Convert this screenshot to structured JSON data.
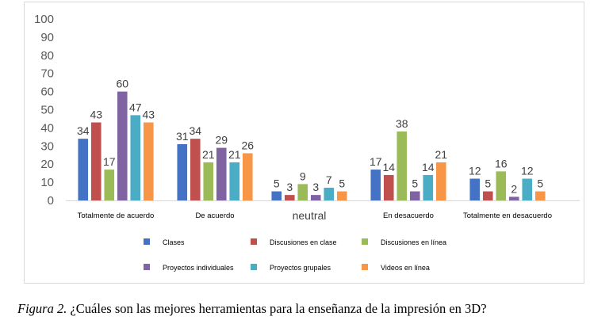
{
  "chart_data": {
    "type": "bar",
    "categories": [
      "Totalmente de acuerdo",
      "De acuerdo",
      "neutral",
      "En desacuerdo",
      "Totalmente en desacuerdo"
    ],
    "series": [
      {
        "name": "Clases",
        "values": [
          34,
          31,
          5,
          17,
          12
        ],
        "color": "#4472c4"
      },
      {
        "name": "Discusiones en clase",
        "values": [
          43,
          34,
          3,
          14,
          5
        ],
        "color": "#c0504d"
      },
      {
        "name": "Discusiones en línea",
        "values": [
          17,
          21,
          9,
          38,
          16
        ],
        "color": "#9bbb59"
      },
      {
        "name": "Proyectos individuales",
        "values": [
          60,
          29,
          3,
          5,
          2
        ],
        "color": "#8064a2"
      },
      {
        "name": "Proyectos grupales",
        "values": [
          47,
          21,
          7,
          14,
          12
        ],
        "color": "#4bacc6"
      },
      {
        "name": "Videos en línea",
        "values": [
          43,
          26,
          5,
          21,
          5
        ],
        "color": "#f79646"
      }
    ],
    "data_labels": [
      [
        "34",
        "43",
        "17",
        "60",
        "47",
        "43"
      ],
      [
        "31",
        "34",
        "21",
        "29",
        "21",
        "26"
      ],
      [
        "5",
        "3",
        "9",
        "3",
        "7",
        "5"
      ],
      [
        "17",
        "14",
        "38",
        "5",
        "14",
        "21"
      ],
      [
        "12",
        "5",
        "16",
        "2",
        "12",
        "5"
      ]
    ],
    "ylim": [
      0,
      100
    ],
    "yticks": [
      "0",
      "10",
      "20",
      "30",
      "40",
      "50",
      "60",
      "70",
      "80",
      "90",
      "100"
    ],
    "grid": false,
    "legend_position": "bottom"
  },
  "caption": {
    "figure_label": "Figura 2.",
    "text": " ¿Cuáles son las mejores herramientas para la enseñanza de la impresión en 3D?"
  }
}
